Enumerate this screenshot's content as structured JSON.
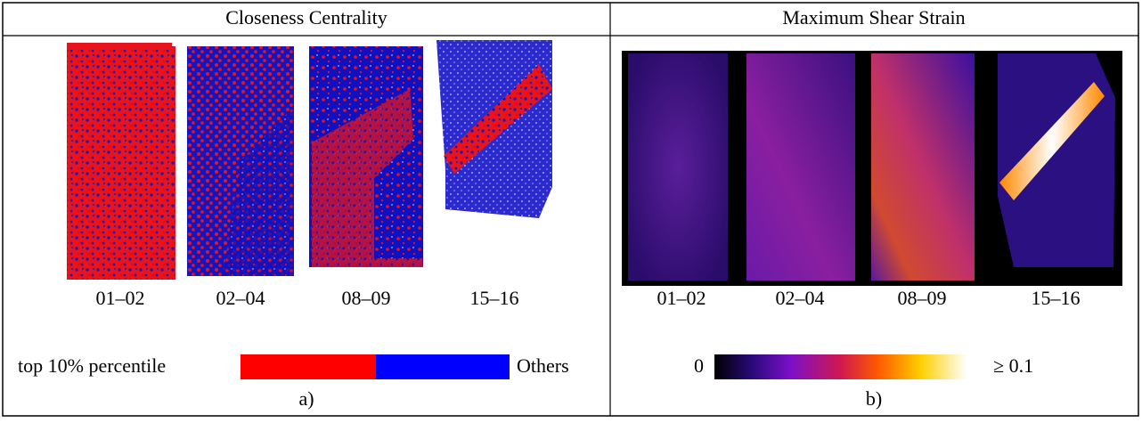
{
  "left": {
    "title": "Closeness Centrality",
    "labels": [
      "01–02",
      "02–04",
      "08–09",
      "15–16"
    ],
    "legend_left": "top 10% percentile",
    "legend_right": "Others",
    "caption": "a)"
  },
  "right": {
    "title": "Maximum Shear Strain",
    "labels": [
      "01–02",
      "02–04",
      "08–09",
      "15–16"
    ],
    "colorbar_min": "0",
    "colorbar_max": "≥ 0.1",
    "caption": "b)"
  }
}
